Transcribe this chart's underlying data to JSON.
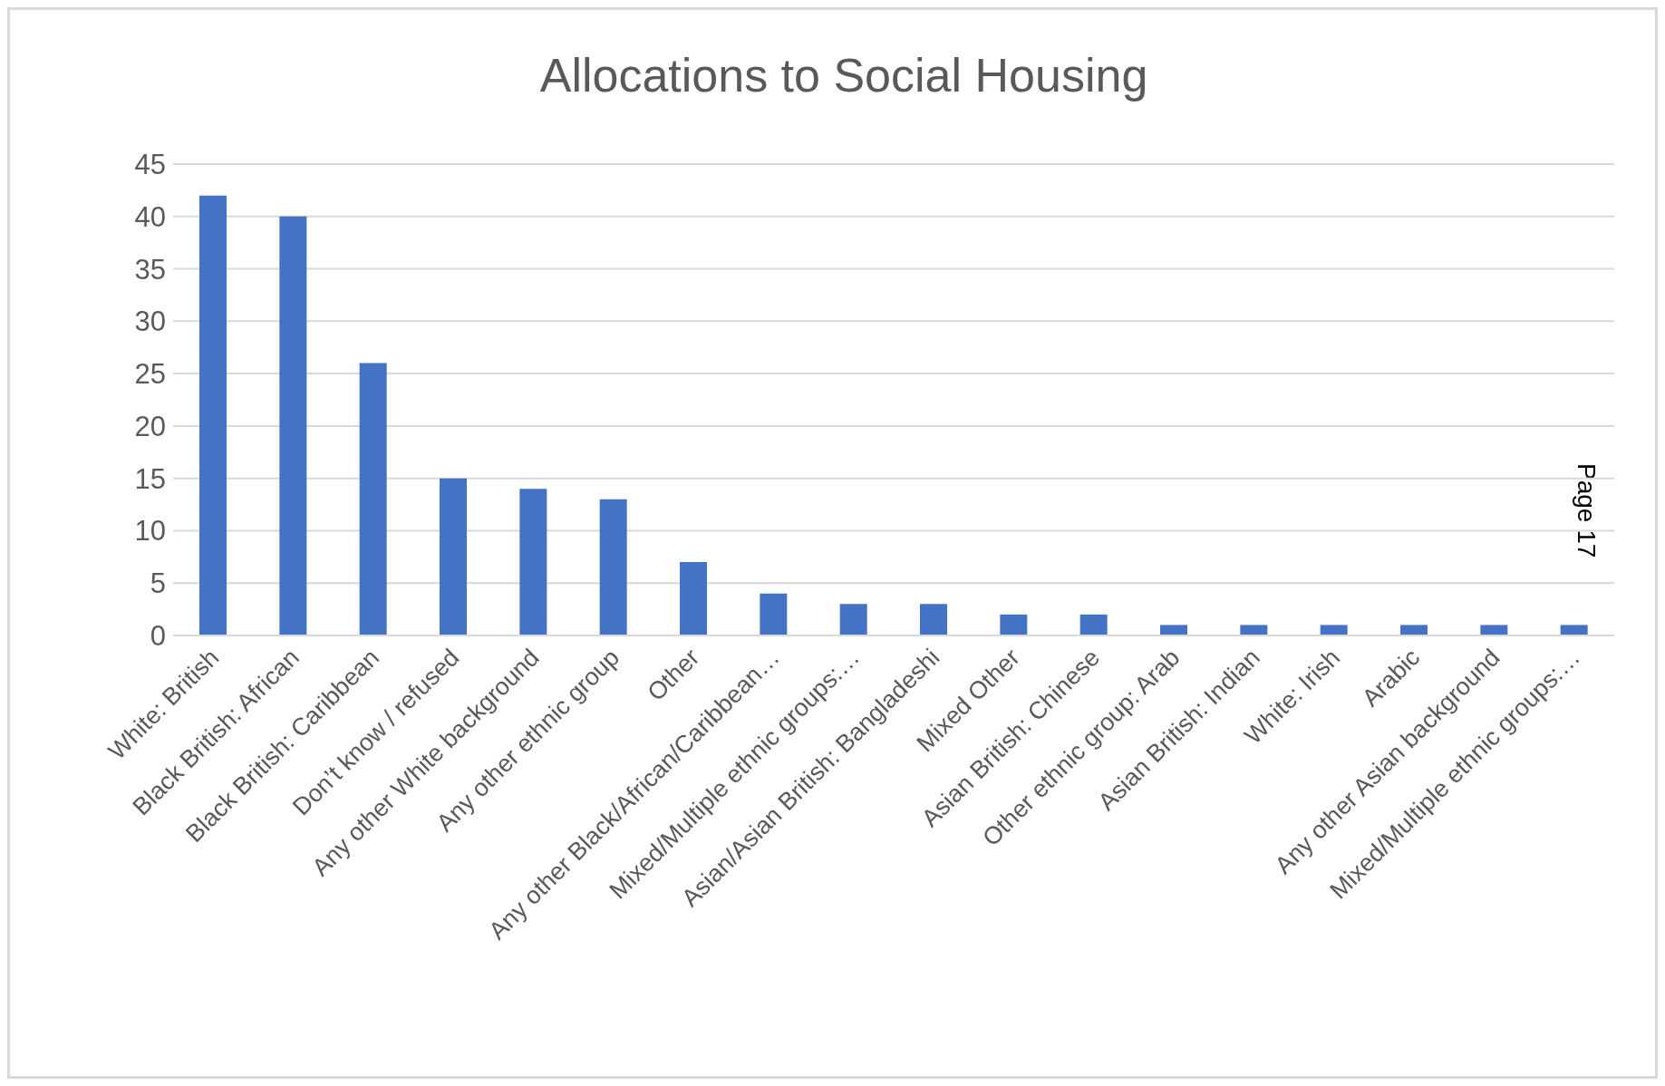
{
  "chart_data": {
    "type": "bar",
    "title": "Allocations to Social Housing",
    "categories": [
      "White: British",
      "Black British: African",
      "Black British: Caribbean",
      "Don’t know / refused",
      "Any other White background",
      "Any other ethnic group",
      "Other",
      "Any other Black/African/Caribbean…",
      "Mixed/Multiple ethnic groups:…",
      "Asian/Asian British: Bangladeshi",
      "Mixed Other",
      "Asian British: Chinese",
      "Other ethnic group: Arab",
      "Asian British: Indian",
      "White: Irish",
      "Arabic",
      "Any other Asian background",
      "Mixed/Multiple ethnic groups:…"
    ],
    "values": [
      42,
      40,
      26,
      15,
      14,
      13,
      7,
      4,
      3,
      3,
      2,
      2,
      1,
      1,
      1,
      1,
      1,
      1
    ],
    "color": "#4472c4",
    "ylim": [
      0,
      45
    ],
    "yticks": [
      0,
      5,
      10,
      15,
      20,
      25,
      30,
      35,
      40,
      45
    ],
    "grid": "y",
    "legend": false,
    "annotations": [
      "Page 17"
    ]
  }
}
